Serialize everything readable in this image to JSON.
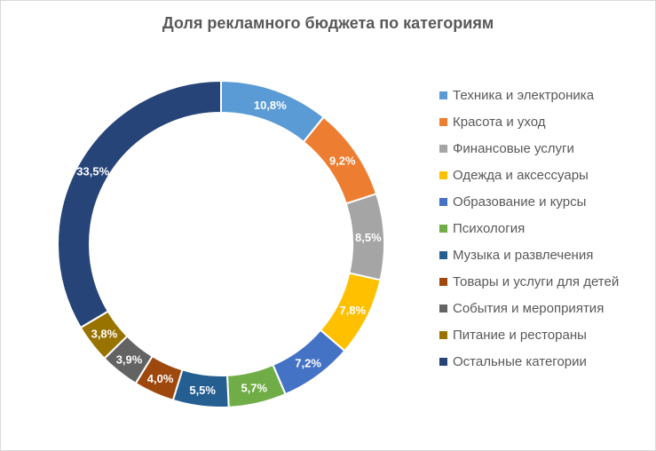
{
  "chart_data": {
    "type": "pie",
    "variant": "doughnut",
    "title": "Доля рекламного бюджета по категориям",
    "legend_position": "right",
    "slices": [
      {
        "label": "Техника и электроника",
        "value": 10.8,
        "display": "10,8%",
        "color": "#5B9BD5"
      },
      {
        "label": "Красота и уход",
        "value": 9.2,
        "display": "9,2%",
        "color": "#ED7D31"
      },
      {
        "label": "Финансовые услуги",
        "value": 8.5,
        "display": "8,5%",
        "color": "#A5A5A5"
      },
      {
        "label": "Одежда и аксессуары",
        "value": 7.8,
        "display": "7,8%",
        "color": "#FFC000"
      },
      {
        "label": "Образование и курсы",
        "value": 7.2,
        "display": "7,2%",
        "color": "#4472C4"
      },
      {
        "label": "Психология",
        "value": 5.7,
        "display": "5,7%",
        "color": "#70AD47"
      },
      {
        "label": "Музыка и развлечения",
        "value": 5.5,
        "display": "5,5%",
        "color": "#255E91"
      },
      {
        "label": "Товары и услуги для детей",
        "value": 4.0,
        "display": "4,0%",
        "color": "#9E480E"
      },
      {
        "label": "События и мероприятия",
        "value": 3.9,
        "display": "3,9%",
        "color": "#636363"
      },
      {
        "label": "Питание и рестораны",
        "value": 3.8,
        "display": "3,8%",
        "color": "#997300"
      },
      {
        "label": "Остальные категории",
        "value": 33.5,
        "display": "33,5%",
        "color": "#264478"
      }
    ]
  }
}
